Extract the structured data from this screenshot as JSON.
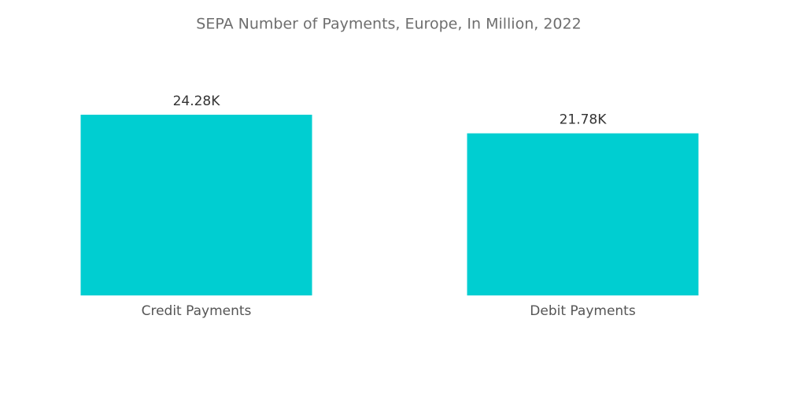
{
  "chart_data": {
    "type": "bar",
    "title": "SEPA Number of Payments, Europe, In Million, 2022",
    "categories": [
      "Credit Payments",
      "Debit Payments"
    ],
    "values": [
      24280,
      21780
    ],
    "value_labels": [
      "24.28K",
      "21.78K"
    ],
    "color": "#00ced1"
  }
}
